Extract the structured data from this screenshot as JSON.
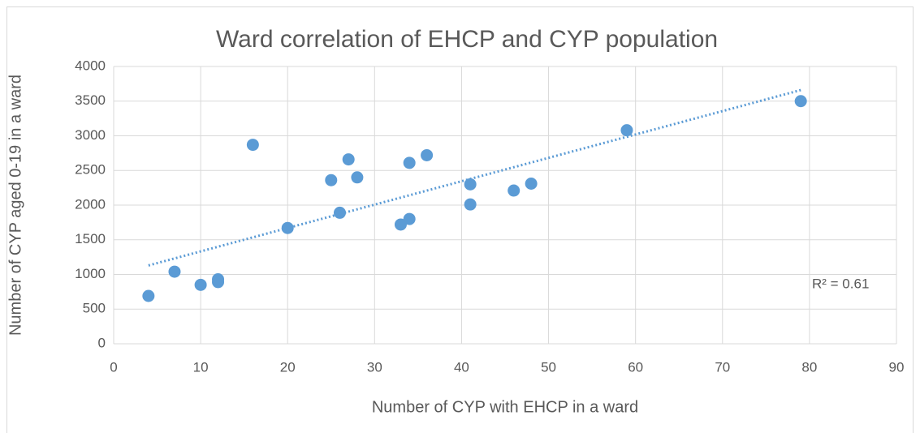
{
  "chart_data": {
    "type": "scatter",
    "title": "Ward correlation of EHCP and CYP population",
    "x_label": "Number of CYP with EHCP in a ward",
    "y_label": "Number of CYP aged 0-19 in a ward",
    "color": "#5b9bd5",
    "x": [
      4,
      7,
      10,
      12,
      12,
      16,
      20,
      25,
      26,
      27,
      28,
      33,
      34,
      34,
      36,
      41,
      41,
      46,
      48,
      59,
      79
    ],
    "values": [
      690,
      1040,
      850,
      930,
      890,
      2870,
      1670,
      2360,
      1890,
      2660,
      2400,
      1720,
      1800,
      2610,
      2720,
      2300,
      2010,
      2210,
      2310,
      3080,
      3500
    ],
    "trendline": {
      "x": [
        4,
        79
      ],
      "values": [
        1130,
        3660
      ]
    },
    "annotation": "R² = 0.61",
    "xlim": [
      0,
      90
    ],
    "xticks": [
      0,
      10,
      20,
      30,
      40,
      50,
      60,
      70,
      80,
      90
    ],
    "ylim": [
      0,
      4000
    ],
    "yticks": [
      0,
      500,
      1000,
      1500,
      2000,
      2500,
      3000,
      3500,
      4000
    ],
    "grid": true
  }
}
